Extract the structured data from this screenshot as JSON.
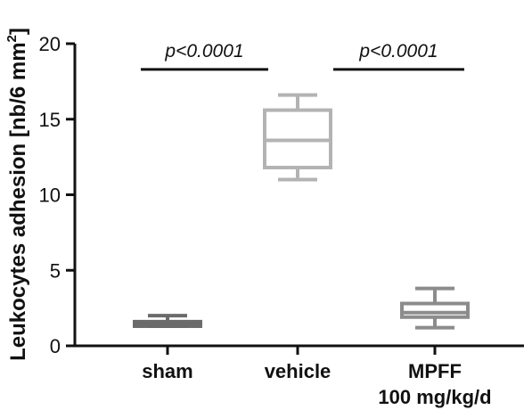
{
  "chart_data": {
    "type": "box",
    "ylabel": "Leukocytes adhesion [nb/6 mm",
    "ylabel_superscript": "2",
    "ylabel_close": "]",
    "ylim": [
      0,
      20
    ],
    "yticks": [
      0,
      5,
      10,
      15,
      20
    ],
    "grid": false,
    "categories": [
      {
        "lines": [
          "sham"
        ]
      },
      {
        "lines": [
          "vehicle"
        ]
      },
      {
        "lines": [
          "MPFF",
          "100 mg/kg/d"
        ]
      }
    ],
    "boxes": [
      {
        "category": "sham",
        "min": 1.3,
        "q1": 1.3,
        "median": 1.4,
        "q3": 1.6,
        "max": 2.0,
        "color": "#6b6b6b"
      },
      {
        "category": "vehicle",
        "min": 11.0,
        "q1": 11.8,
        "median": 13.6,
        "q3": 15.6,
        "max": 16.6,
        "color": "#b3b3b3"
      },
      {
        "category": "MPFF",
        "min": 1.2,
        "q1": 1.9,
        "median": 2.2,
        "q3": 2.8,
        "max": 3.8,
        "color": "#8c8c8c"
      }
    ],
    "significance": [
      {
        "from": 0,
        "to": 1,
        "label": "p<0.0001",
        "y": 18.3
      },
      {
        "from": 1,
        "to": 2,
        "label": "p<0.0001",
        "y": 18.3
      }
    ]
  }
}
